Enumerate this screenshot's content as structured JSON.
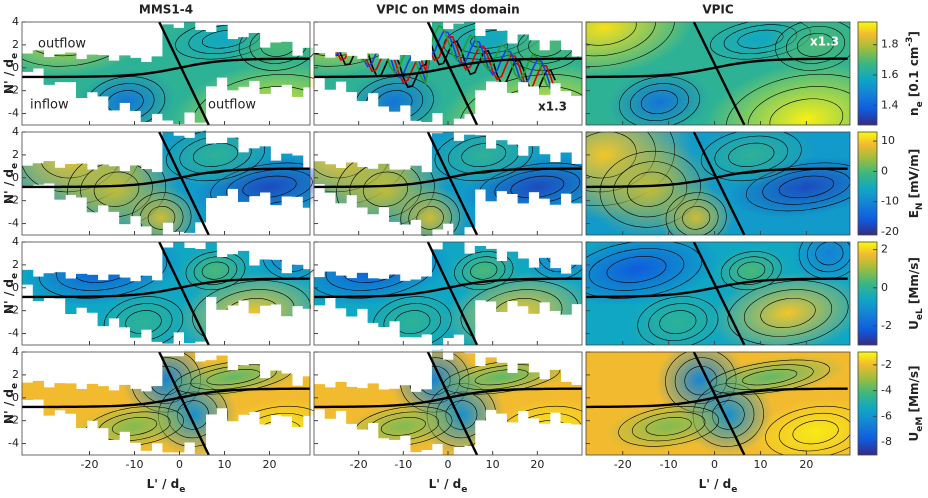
{
  "columns": [
    {
      "title": "MMS1-4",
      "xlim": [
        -35,
        29
      ]
    },
    {
      "title": "VPIC on MMS domain",
      "xlim": [
        -30,
        30
      ]
    },
    {
      "title": "VPIC",
      "xlim": [
        -28,
        29.5
      ]
    }
  ],
  "x_axis": {
    "label": "L' / d",
    "label_sub": "e",
    "ticks": [
      -20,
      -10,
      0,
      10,
      20
    ]
  },
  "y_axis": {
    "label": "N' / d",
    "label_sub": "e",
    "ticks": [
      4,
      2,
      0,
      -2,
      -4
    ],
    "ylim": [
      -5,
      4
    ]
  },
  "rows": [
    {
      "colorbar": {
        "label_parts": [
          {
            "text": "n"
          },
          {
            "text": "e",
            "sub": true
          },
          {
            "text": " [0.1 cm"
          },
          {
            "text": "-3",
            "sup": true
          },
          {
            "text": "]"
          }
        ],
        "clim": [
          1.27,
          1.95
        ],
        "ticks": [
          1.8,
          1.6,
          1.4
        ]
      }
    },
    {
      "colorbar": {
        "label_parts": [
          {
            "text": "E"
          },
          {
            "text": "N",
            "sub": true
          },
          {
            "text": " [mV/m]"
          }
        ],
        "clim": [
          -21,
          13
        ],
        "ticks": [
          10,
          0,
          -10,
          -20
        ]
      }
    },
    {
      "colorbar": {
        "label_parts": [
          {
            "text": "U"
          },
          {
            "text": "eL",
            "sub": true
          },
          {
            "text": " [Mm/s]"
          }
        ],
        "clim": [
          -3,
          2.4
        ],
        "ticks": [
          2,
          0,
          -2
        ]
      }
    },
    {
      "colorbar": {
        "label_parts": [
          {
            "text": "U"
          },
          {
            "text": "eM",
            "sub": true
          },
          {
            "text": " [Mm/s]"
          }
        ],
        "clim": [
          -9,
          -1
        ],
        "ticks": [
          -2,
          -4,
          -6,
          -8
        ]
      }
    }
  ],
  "annotations": {
    "outflow_left": "outflow",
    "inflow": "inflow",
    "outflow_right": "outflow",
    "scale_col2": "x1.3",
    "scale_col3": "x1.3"
  }
}
